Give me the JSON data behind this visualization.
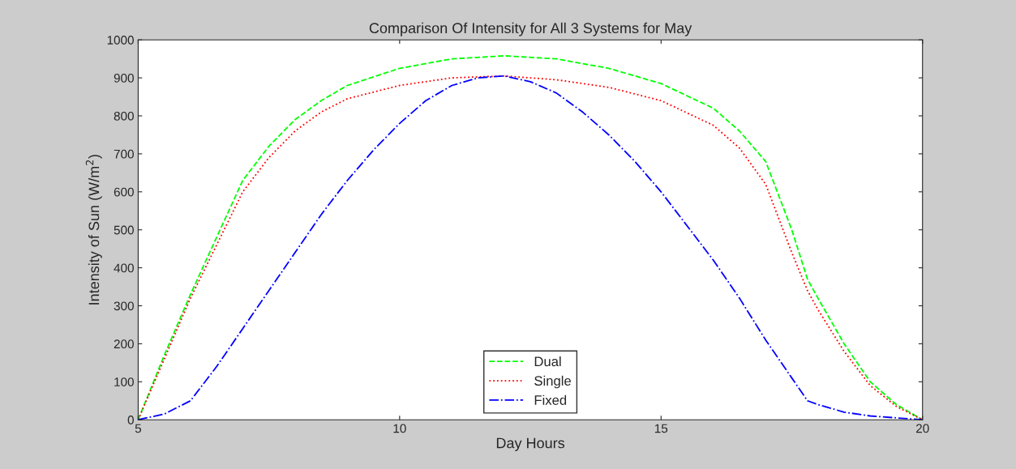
{
  "chart_data": {
    "type": "line",
    "title": "Comparison Of Intensity for All 3 Systems for May",
    "xlabel": "Day Hours",
    "ylabel": "Intensity of Sun (W/m$^{2}$)",
    "xlim": [
      5,
      20
    ],
    "xticks": [
      5,
      10,
      15,
      20
    ],
    "ylim": [
      0,
      1000
    ],
    "yticks": [
      0,
      100,
      200,
      300,
      400,
      500,
      600,
      700,
      800,
      900,
      1000
    ],
    "grid": false,
    "legend": "bottom",
    "marker": "none",
    "series": [
      {
        "name": "Dual",
        "color": "#00ff00",
        "line_style": "dashed",
        "x": [
          5,
          5.5,
          6,
          6.5,
          7,
          7.5,
          8,
          8.5,
          9,
          10,
          11,
          12,
          13,
          14,
          15,
          16,
          16.5,
          17,
          17.5,
          17.8,
          18,
          18.5,
          19,
          19.5,
          20
        ],
        "values": [
          0,
          170,
          330,
          480,
          630,
          720,
          790,
          840,
          880,
          925,
          950,
          958,
          950,
          925,
          885,
          820,
          760,
          680,
          500,
          370,
          320,
          200,
          100,
          40,
          0
        ]
      },
      {
        "name": "Single",
        "color": "#ff0000",
        "line_style": "dotted",
        "x": [
          5,
          5.5,
          6,
          6.5,
          7,
          7.5,
          8,
          8.5,
          9,
          10,
          11,
          12,
          13,
          14,
          15,
          16,
          16.5,
          17,
          17.5,
          17.8,
          18,
          18.5,
          19,
          19.5,
          20
        ],
        "values": [
          0,
          160,
          320,
          460,
          600,
          690,
          760,
          810,
          845,
          880,
          900,
          905,
          895,
          875,
          840,
          775,
          715,
          620,
          440,
          340,
          290,
          180,
          90,
          35,
          0
        ]
      },
      {
        "name": "Fixed",
        "color": "#0000ff",
        "line_style": "dashdot",
        "x": [
          5,
          5.5,
          6,
          6.5,
          7,
          7.5,
          8,
          8.5,
          9,
          9.5,
          10,
          10.5,
          11,
          11.5,
          12,
          12.5,
          13,
          13.5,
          14,
          14.5,
          15,
          15.5,
          16,
          16.5,
          17,
          17.5,
          17.8,
          18,
          18.5,
          19,
          20
        ],
        "values": [
          0,
          15,
          50,
          140,
          240,
          340,
          440,
          540,
          630,
          710,
          780,
          840,
          880,
          900,
          905,
          890,
          860,
          810,
          750,
          680,
          600,
          510,
          420,
          320,
          210,
          110,
          50,
          40,
          20,
          10,
          0
        ]
      }
    ]
  }
}
